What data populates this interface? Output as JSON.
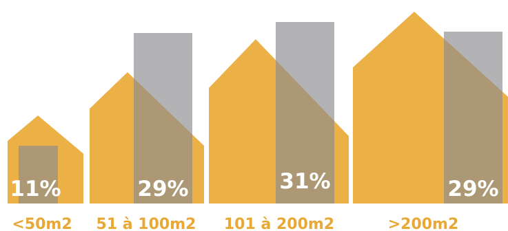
{
  "chart_data": {
    "type": "bar",
    "categories": [
      "<50m2",
      "51 à 100m2",
      "101 à 200m2",
      ">200m2"
    ],
    "values": [
      11,
      29,
      31,
      29
    ],
    "value_labels": [
      "11%",
      "29%",
      "31%",
      "29%"
    ],
    "unit": "%",
    "title": "",
    "xlabel": "",
    "ylabel": "",
    "ylim": [
      0,
      40
    ],
    "grid": false,
    "legend": "none",
    "colors": {
      "house": "#ecb146",
      "overlay": "#8a8a8d",
      "overlay_opacity": 0.65,
      "label_text": "#ffffff",
      "category_text": "#e8a836"
    }
  }
}
